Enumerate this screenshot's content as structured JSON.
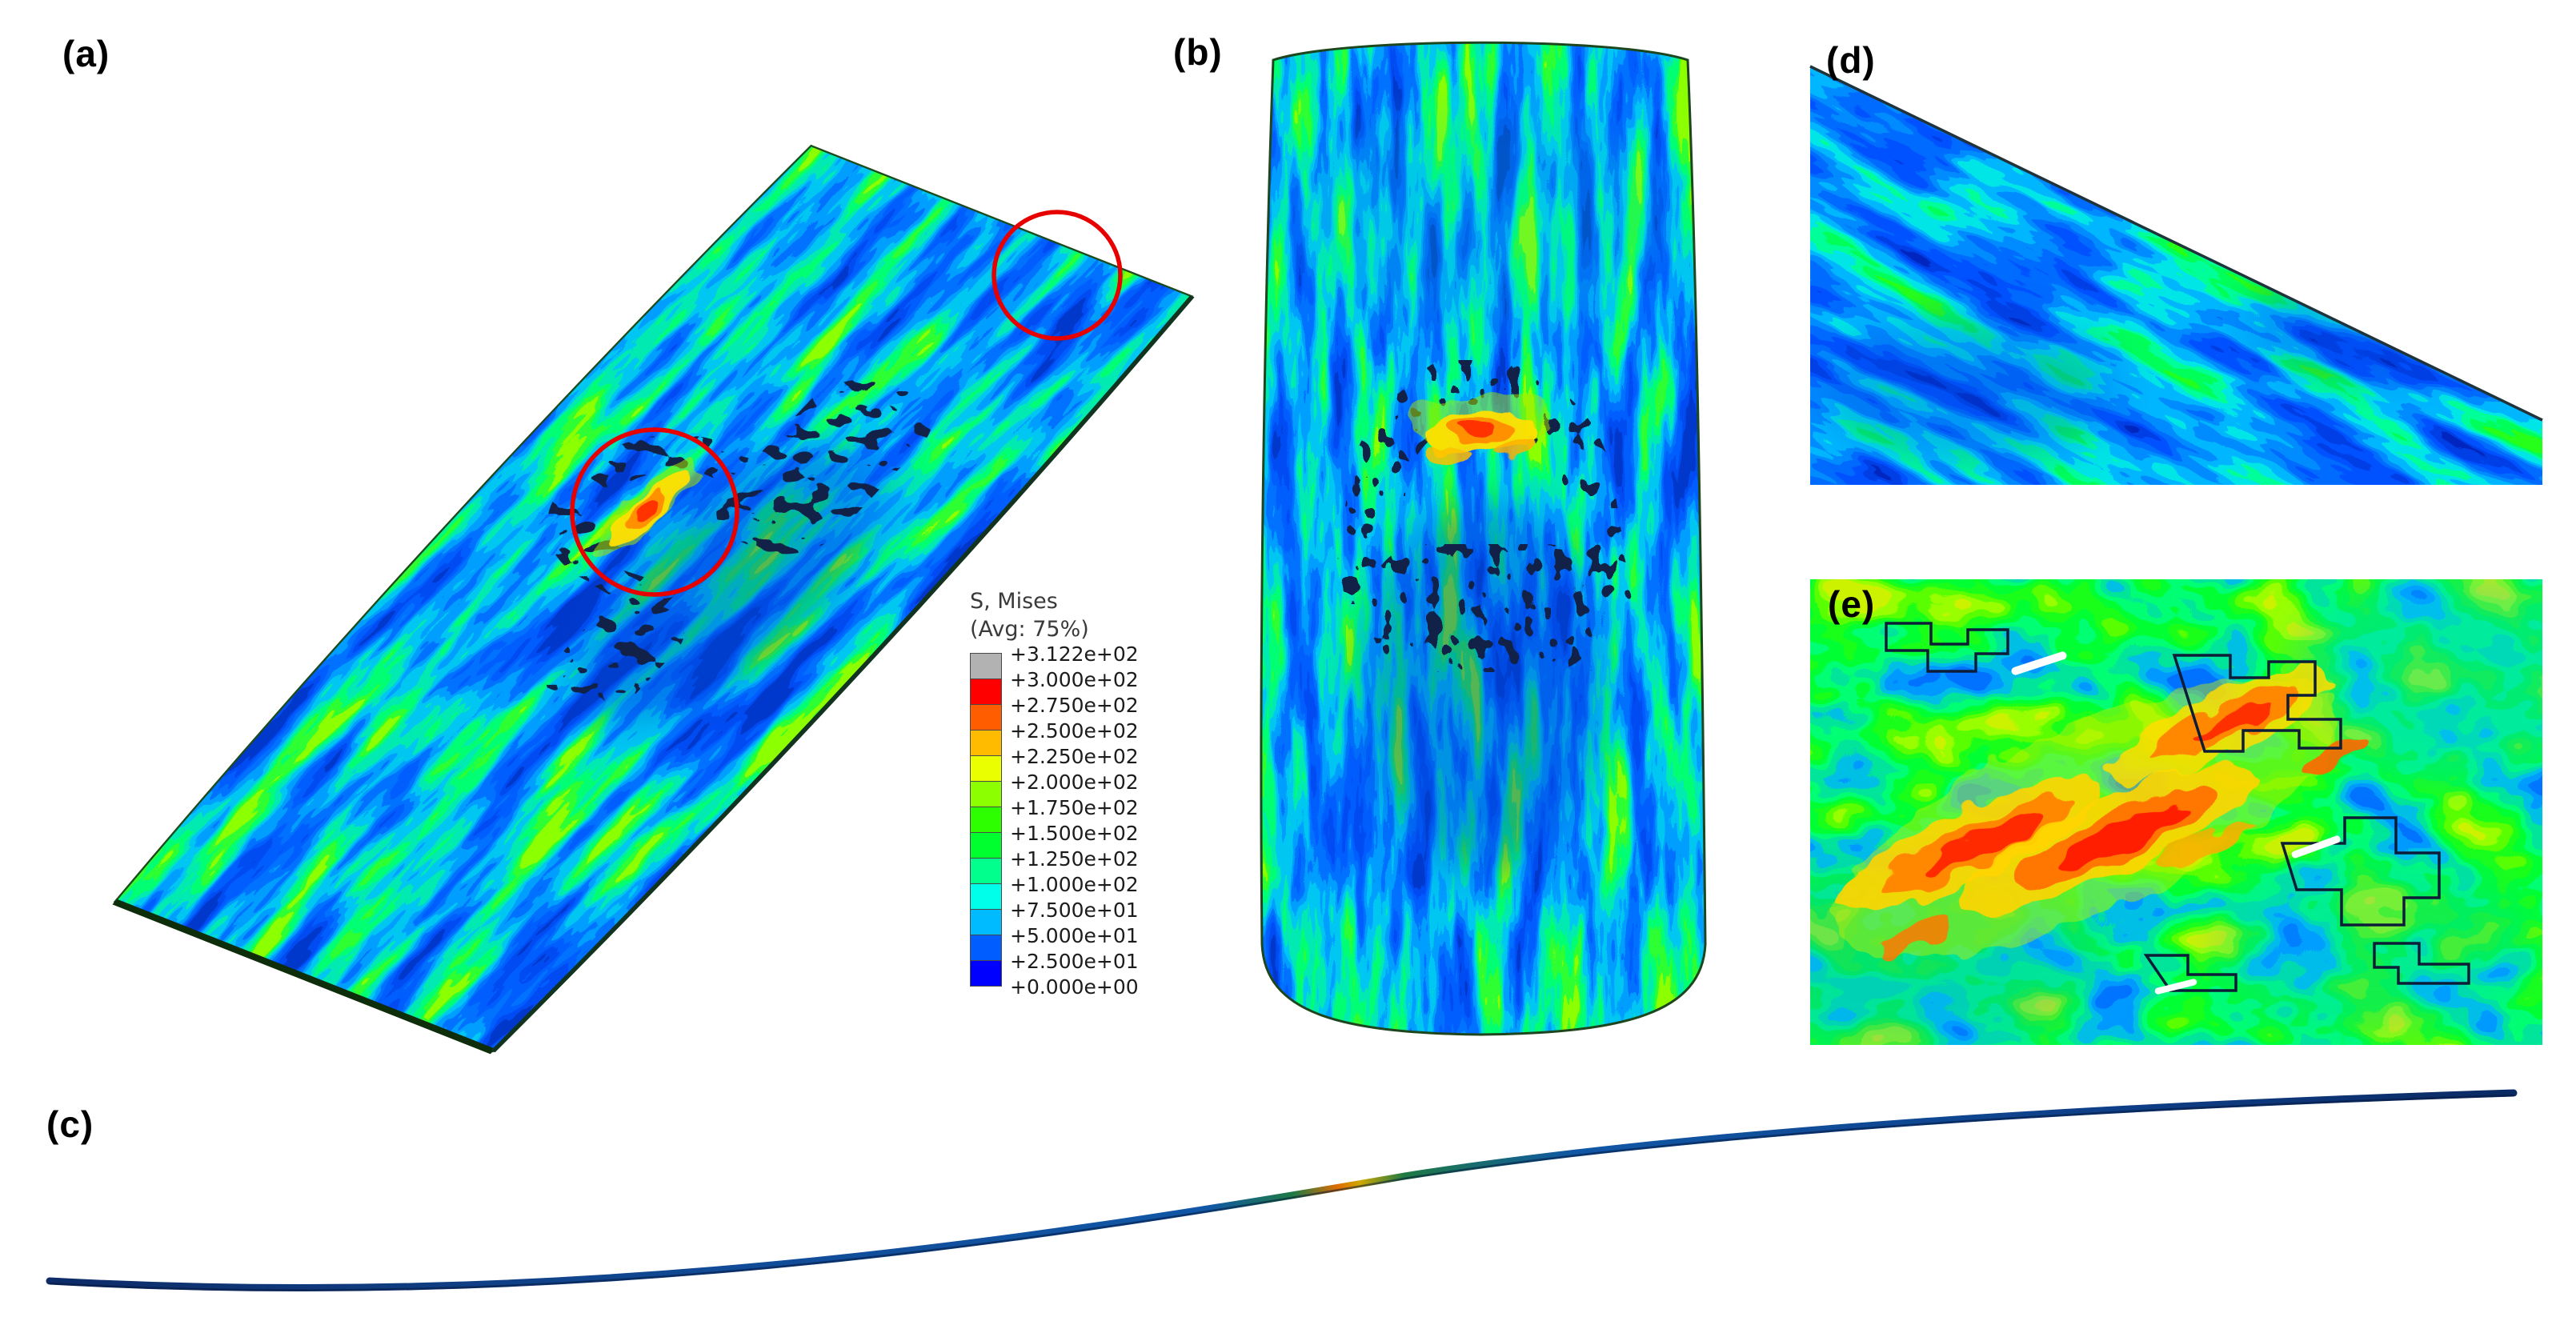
{
  "figure": {
    "background_color": "#ffffff",
    "highlight_circle_color": "#e60000",
    "panels": [
      {
        "id": "a",
        "label": "(a)"
      },
      {
        "id": "b",
        "label": "(b)"
      },
      {
        "id": "c",
        "label": "(c)"
      },
      {
        "id": "d",
        "label": "(d)"
      },
      {
        "id": "e",
        "label": "(e)"
      }
    ],
    "legend": {
      "title_line1": "S, Mises",
      "title_line2": "(Avg: 75%)",
      "tick_labels": [
        "+3.122e+02",
        "+3.000e+02",
        "+2.750e+02",
        "+2.500e+02",
        "+2.250e+02",
        "+2.000e+02",
        "+1.750e+02",
        "+1.500e+02",
        "+1.250e+02",
        "+1.000e+02",
        "+7.500e+01",
        "+5.000e+01",
        "+2.500e+01",
        "+0.000e+00"
      ],
      "band_colors": [
        "#b2b2b2",
        "#ff0000",
        "#ff5d00",
        "#ffbb00",
        "#eaff00",
        "#8cff00",
        "#2eff00",
        "#00ff2e",
        "#00ff8c",
        "#00ffea",
        "#00bbff",
        "#005dff",
        "#0000ff"
      ]
    }
  }
}
